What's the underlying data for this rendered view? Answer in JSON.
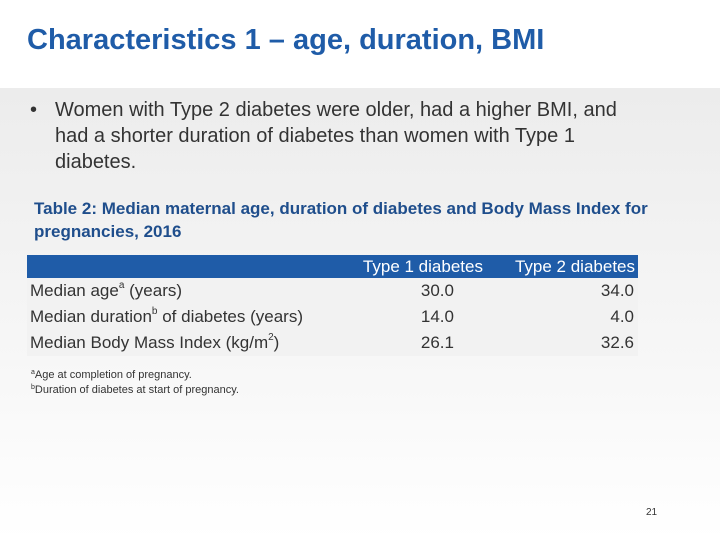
{
  "slide": {
    "title": "Characteristics 1 – age, duration, BMI",
    "bullet": "Women with Type 2 diabetes were older, had a higher BMI, and had a shorter duration of diabetes than women with Type 1 diabetes.",
    "bullet_marker": "•",
    "table_caption": "Table 2: Median maternal age, duration of diabetes and Body Mass Index for pregnancies, 2016",
    "page_number": "21"
  },
  "table": {
    "headers": [
      "",
      "Type 1 diabetes",
      "Type 2 diabetes"
    ],
    "rows": [
      {
        "label_pre": "Median age",
        "sup": "a",
        "label_post": " (years)",
        "type1": "30.0",
        "type2": "34.0"
      },
      {
        "label_pre": "Median duration",
        "sup": "b",
        "label_post": " of diabetes (years)",
        "type1": "14.0",
        "type2": "4.0"
      },
      {
        "label_pre": "Median Body Mass Index (kg/m",
        "sup": "2",
        "label_post": ")",
        "type1": "26.1",
        "type2": "32.6"
      }
    ]
  },
  "footnotes": [
    {
      "mark": "a",
      "text": "Age at completion of pregnancy."
    },
    {
      "mark": "b",
      "text": "Duration of diabetes at start of pregnancy."
    }
  ],
  "colors": {
    "title": "#1f5ca8",
    "header_bg": "#1f5ca8",
    "caption": "#1f4e8c"
  }
}
